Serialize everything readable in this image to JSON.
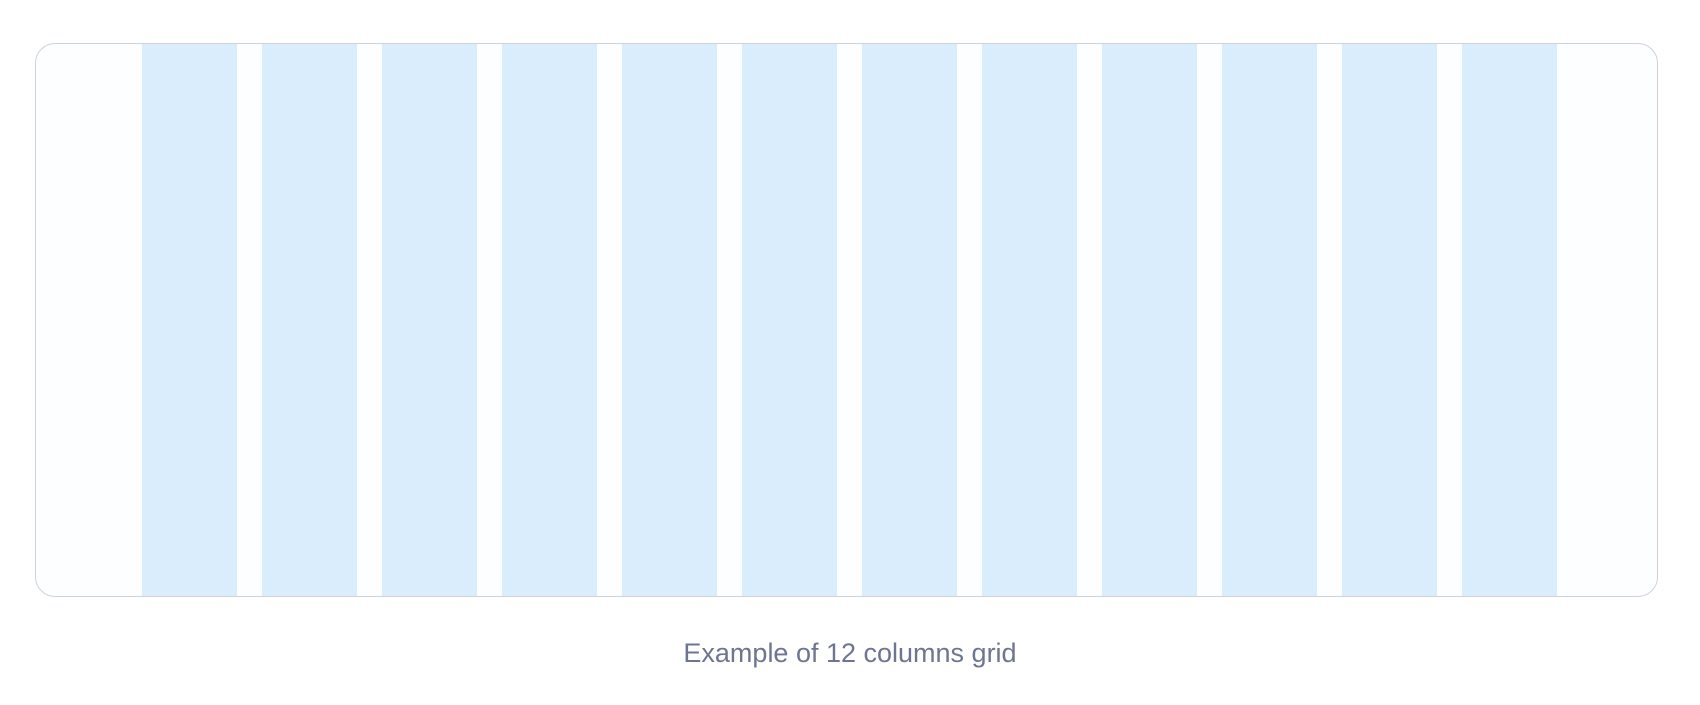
{
  "grid": {
    "column_count": 12,
    "column_color": "#daedfd",
    "frame_border_color": "#cfd2d8",
    "frame_background": "#fdfeff"
  },
  "caption": {
    "text": "Example of 12 columns grid",
    "color": "#6d7590"
  }
}
